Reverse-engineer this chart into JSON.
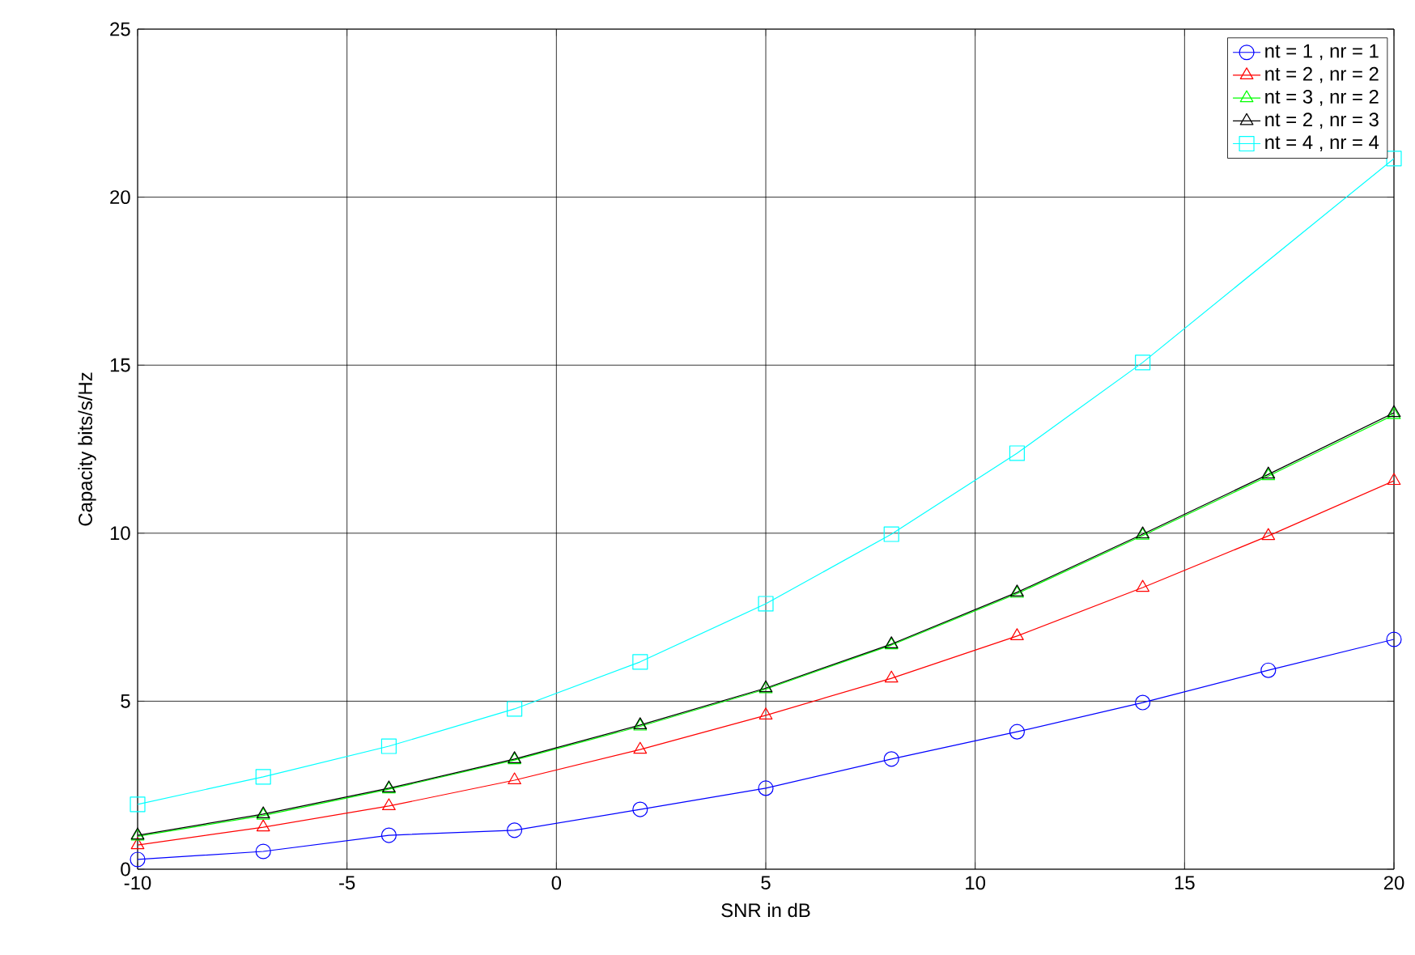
{
  "chart_data": {
    "type": "line",
    "xlabel": "SNR in dB",
    "ylabel": "Capacity bits/s/Hz",
    "x": [
      -10,
      -7,
      -4,
      -1,
      2,
      5,
      8,
      11,
      14,
      17,
      20
    ],
    "series": [
      {
        "name": "nt = 1 , nr = 1",
        "color": "#0000ff",
        "marker": "circle",
        "values": [
          0.29,
          0.53,
          1.01,
          1.16,
          1.78,
          2.41,
          3.28,
          4.09,
          4.96,
          5.92,
          6.84
        ]
      },
      {
        "name": "nt = 2 , nr = 2",
        "color": "#ff0000",
        "marker": "triangle-right",
        "values": [
          0.72,
          1.25,
          1.88,
          2.65,
          3.56,
          4.58,
          5.68,
          6.94,
          8.38,
          9.92,
          11.56
        ]
      },
      {
        "name": "nt = 3 , nr = 2",
        "color": "#00ff00",
        "marker": "triangle-left",
        "values": [
          0.98,
          1.6,
          2.38,
          3.25,
          4.25,
          5.36,
          6.67,
          8.2,
          9.93,
          11.7,
          13.52
        ]
      },
      {
        "name": "nt = 2 , nr = 3",
        "color": "#000000",
        "marker": "triangle",
        "values": [
          1.01,
          1.64,
          2.41,
          3.28,
          4.29,
          5.39,
          6.7,
          8.24,
          9.97,
          11.75,
          13.58
        ]
      },
      {
        "name": "nt = 4 , nr = 4",
        "color": "#00ffff",
        "marker": "square",
        "values": [
          1.93,
          2.75,
          3.66,
          4.77,
          6.17,
          7.9,
          9.97,
          12.38,
          15.08,
          null,
          21.15
        ]
      }
    ],
    "xlim": [
      -10,
      20
    ],
    "ylim": [
      0,
      25
    ],
    "xticks": [
      -10,
      -5,
      0,
      5,
      10,
      15,
      20
    ],
    "yticks": [
      0,
      5,
      10,
      15,
      20,
      25
    ],
    "grid": true,
    "legend": "top right",
    "line_style": "solid"
  }
}
